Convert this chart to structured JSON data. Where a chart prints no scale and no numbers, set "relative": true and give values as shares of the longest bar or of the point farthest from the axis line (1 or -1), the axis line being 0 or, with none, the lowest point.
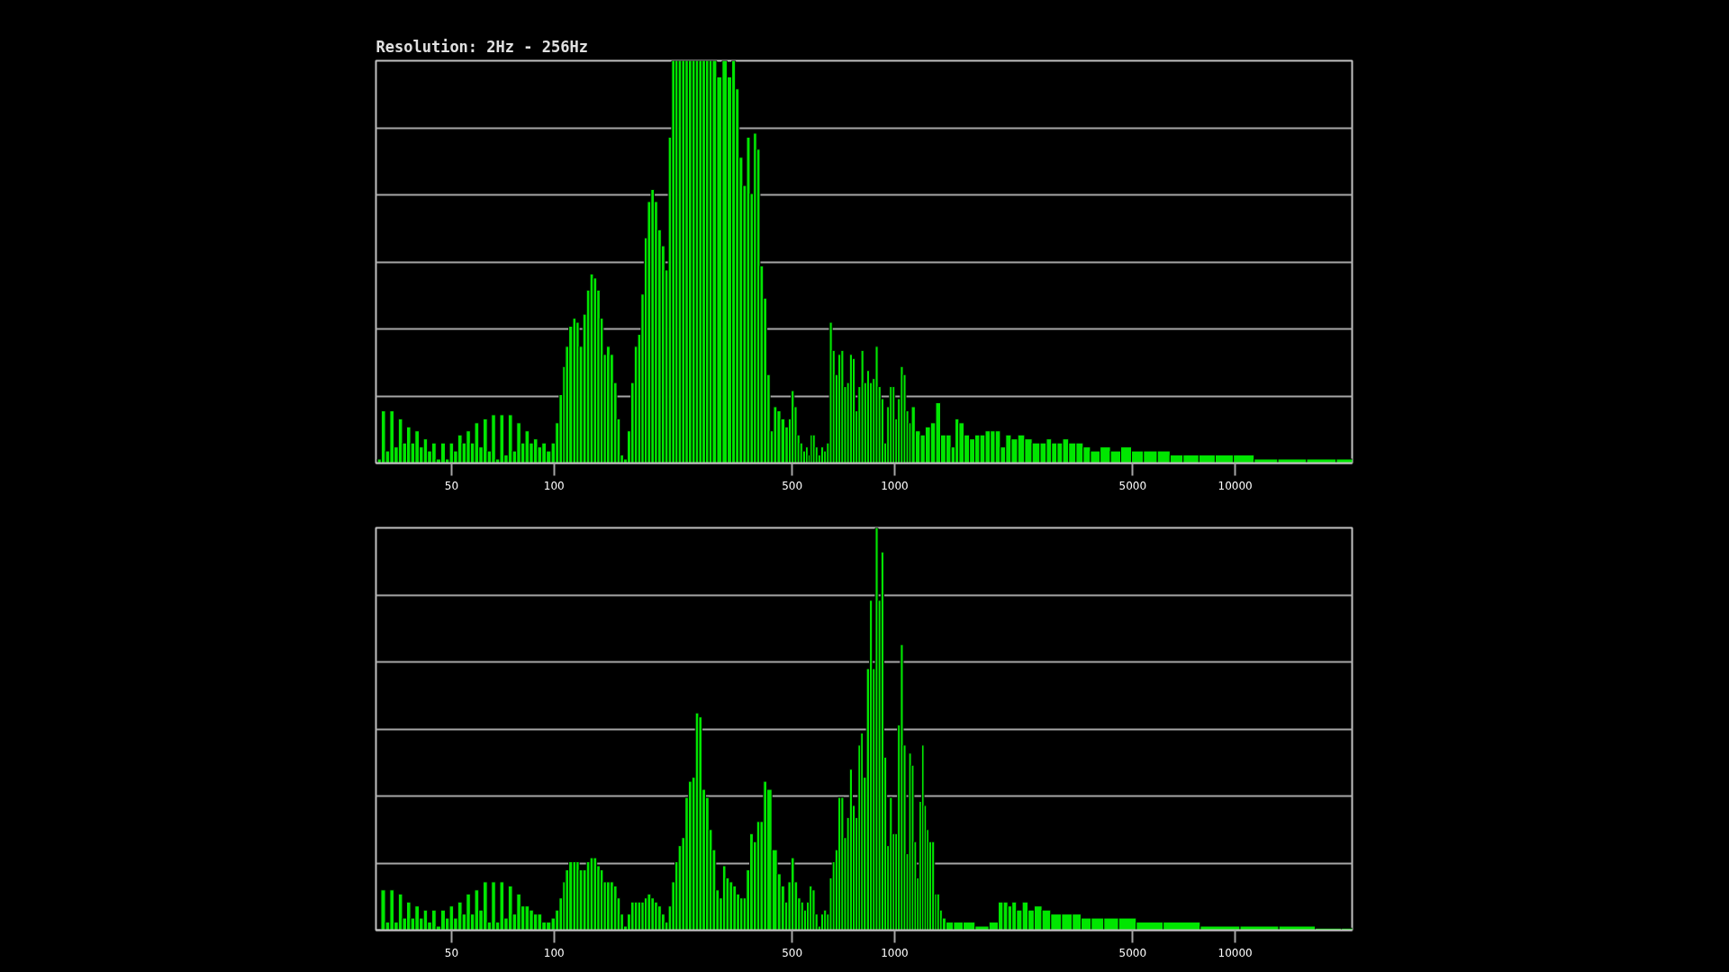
{
  "chart_data": [
    {
      "type": "bar",
      "title": "Resolution: 2Hz - 256Hz",
      "relative": true,
      "log": "x",
      "xlim": [
        30,
        22050
      ],
      "xticks": [
        50,
        100,
        500,
        1000,
        5000,
        10000
      ],
      "grid": "y",
      "color": "#00e600",
      "x": [
        30.7,
        31.5,
        32.5,
        33.4,
        34.4,
        35.4,
        36.4,
        37.4,
        38.5,
        39.6,
        40.8,
        41.9,
        43.1,
        44.4,
        45.7,
        47.3,
        48.6,
        50.0,
        51.4,
        52.9,
        54.5,
        56.0,
        57.6,
        59.3,
        61.0,
        62.8,
        64.6,
        66.4,
        68.3,
        70.3,
        72.3,
        74.4,
        76.6,
        78.8,
        81.0,
        83.4,
        85.8,
        88.2,
        90.8,
        93.4,
        96.4,
        99.8,
        102,
        105,
        107,
        109,
        112,
        115,
        117,
        120,
        123,
        126,
        129,
        132,
        135,
        138,
        141,
        144,
        148,
        151,
        155,
        158,
        162,
        166,
        170,
        174,
        178,
        182,
        186,
        190,
        195,
        199,
        204,
        209,
        214,
        219,
        224,
        229,
        234,
        240,
        245,
        251,
        257,
        263,
        269,
        275,
        282,
        288,
        295,
        306,
        317,
        328,
        337,
        345,
        354,
        363,
        372,
        381,
        389,
        398,
        407,
        417,
        426,
        436,
        446,
        457,
        470,
        483,
        492,
        502,
        512,
        522,
        532,
        542,
        553,
        561,
        569,
        579,
        590,
        601,
        613,
        625,
        637,
        650,
        662,
        675,
        689,
        702,
        716,
        730,
        744,
        759,
        773,
        789,
        804,
        820,
        836,
        852,
        869,
        886,
        903,
        921,
        939,
        957,
        975,
        994,
        1010,
        1030,
        1050,
        1070,
        1090,
        1110,
        1130,
        1170,
        1210,
        1250,
        1300,
        1340,
        1390,
        1440,
        1490,
        1520,
        1570,
        1630,
        1690,
        1750,
        1810,
        1880,
        1940,
        2010,
        2080,
        2160,
        2240,
        2360,
        2460,
        2610,
        2740,
        2840,
        2940,
        3060,
        3170,
        3320,
        3500,
        3660,
        3860,
        4170,
        4440,
        4790,
        5140,
        5630,
        6200,
        6690,
        7390,
        8290,
        9210,
        10600,
        12200,
        14600,
        18000,
        21800
      ],
      "values": [
        0.01,
        0.13,
        0.03,
        0.13,
        0.04,
        0.11,
        0.05,
        0.09,
        0.05,
        0.08,
        0.04,
        0.06,
        0.03,
        0.05,
        0.01,
        0.05,
        0.01,
        0.05,
        0.03,
        0.07,
        0.05,
        0.08,
        0.05,
        0.1,
        0.04,
        0.11,
        0.03,
        0.12,
        0.01,
        0.12,
        0.02,
        0.12,
        0.03,
        0.1,
        0.05,
        0.08,
        0.05,
        0.06,
        0.04,
        0.05,
        0.03,
        0.05,
        0.1,
        0.17,
        0.24,
        0.29,
        0.34,
        0.36,
        0.35,
        0.29,
        0.37,
        0.43,
        0.47,
        0.46,
        0.43,
        0.36,
        0.27,
        0.29,
        0.27,
        0.2,
        0.11,
        0.02,
        0.01,
        0.08,
        0.2,
        0.29,
        0.32,
        0.42,
        0.56,
        0.65,
        0.68,
        0.65,
        0.58,
        0.54,
        0.48,
        0.81,
        1,
        1,
        1,
        1,
        1,
        1,
        1,
        1,
        1,
        1,
        1,
        1,
        1,
        0.96,
        1,
        0.96,
        1,
        0.93,
        0.76,
        0.69,
        0.81,
        0.67,
        0.82,
        0.78,
        0.49,
        0.41,
        0.22,
        0.08,
        0.14,
        0.13,
        0.11,
        0.09,
        0.11,
        0.18,
        0.14,
        0.07,
        0.05,
        0.03,
        0.04,
        0.02,
        0.07,
        0.07,
        0.04,
        0.02,
        0.04,
        0.03,
        0.05,
        0.35,
        0.28,
        0.22,
        0.27,
        0.28,
        0.19,
        0.2,
        0.27,
        0.26,
        0.13,
        0.19,
        0.28,
        0.2,
        0.23,
        0.2,
        0.21,
        0.29,
        0.19,
        0.16,
        0.05,
        0.14,
        0.19,
        0.19,
        0.11,
        0.16,
        0.24,
        0.22,
        0.13,
        0.1,
        0.14,
        0.08,
        0.07,
        0.09,
        0.1,
        0.15,
        0.07,
        0.07,
        0.04,
        0.11,
        0.1,
        0.07,
        0.06,
        0.07,
        0.07,
        0.08,
        0.08,
        0.08,
        0.04,
        0.07,
        0.06,
        0.07,
        0.06,
        0.05,
        0.05,
        0.06,
        0.05,
        0.05,
        0.06,
        0.05,
        0.05,
        0.04,
        0.03,
        0.04,
        0.03,
        0.04,
        0.03,
        0.03,
        0.03,
        0.02,
        0.02,
        0.02,
        0.02,
        0.02,
        0.01,
        0.01,
        0.01,
        0.01
      ]
    },
    {
      "type": "bar",
      "relative": true,
      "log": "x",
      "xlim": [
        30,
        22050
      ],
      "xticks": [
        50,
        100,
        500,
        1000,
        5000,
        10000
      ],
      "grid": "y",
      "color": "#00e600",
      "x": [
        31.5,
        32.5,
        33.4,
        34.4,
        35.4,
        36.4,
        37.4,
        38.5,
        39.6,
        40.8,
        41.9,
        43.1,
        44.4,
        45.7,
        47.3,
        48.6,
        50.0,
        51.4,
        52.9,
        54.5,
        56.0,
        57.6,
        59.3,
        61.0,
        62.8,
        64.6,
        66.4,
        68.3,
        70.3,
        72.3,
        74.4,
        76.6,
        78.8,
        81.0,
        83.4,
        85.8,
        88.2,
        90.8,
        93.4,
        96.4,
        99.8,
        102,
        105,
        107,
        109,
        112,
        115,
        117,
        120,
        123,
        126,
        129,
        132,
        135,
        138,
        141,
        144,
        148,
        151,
        155,
        158,
        162,
        166,
        170,
        174,
        178,
        182,
        186,
        190,
        195,
        199,
        204,
        209,
        214,
        219,
        224,
        229,
        234,
        240,
        245,
        251,
        257,
        263,
        269,
        275,
        282,
        288,
        295,
        302,
        309,
        316,
        323,
        331,
        339,
        347,
        355,
        363,
        371,
        380,
        389,
        398,
        407,
        417,
        426,
        447,
        458,
        470,
        481,
        491,
        502,
        513,
        525,
        535,
        546,
        556,
        567,
        578,
        590,
        601,
        613,
        625,
        637,
        650,
        662,
        675,
        689,
        702,
        716,
        730,
        744,
        759,
        773,
        789,
        801,
        817,
        836,
        852,
        869,
        886,
        903,
        921,
        939,
        957,
        975,
        994,
        1010,
        1030,
        1050,
        1070,
        1090,
        1110,
        1130,
        1150,
        1170,
        1190,
        1210,
        1230,
        1250,
        1270,
        1300,
        1320,
        1340,
        1370,
        1390,
        1440,
        1540,
        1640,
        1810,
        1980,
        2050,
        2120,
        2180,
        2240,
        2320,
        2420,
        2510,
        2630,
        2790,
        2960,
        3230,
        3420,
        3640,
        3920,
        4320,
        4790,
        5480,
        6890,
        9050,
        11800,
        15300,
        19300,
        21800
      ],
      "values": [
        0.1,
        0.02,
        0.1,
        0.02,
        0.09,
        0.03,
        0.07,
        0.03,
        0.06,
        0.03,
        0.05,
        0.02,
        0.05,
        0.01,
        0.05,
        0.03,
        0.06,
        0.03,
        0.07,
        0.04,
        0.09,
        0.04,
        0.1,
        0.05,
        0.12,
        0.02,
        0.12,
        0.02,
        0.12,
        0.03,
        0.11,
        0.04,
        0.09,
        0.06,
        0.06,
        0.05,
        0.04,
        0.04,
        0.02,
        0.02,
        0.03,
        0.05,
        0.08,
        0.12,
        0.15,
        0.17,
        0.17,
        0.17,
        0.15,
        0.15,
        0.17,
        0.18,
        0.18,
        0.16,
        0.15,
        0.12,
        0.12,
        0.12,
        0.11,
        0.08,
        0.04,
        0.01,
        0.04,
        0.07,
        0.07,
        0.07,
        0.07,
        0.08,
        0.09,
        0.08,
        0.07,
        0.06,
        0.04,
        0.02,
        0.06,
        0.12,
        0.17,
        0.21,
        0.23,
        0.33,
        0.37,
        0.38,
        0.54,
        0.53,
        0.35,
        0.33,
        0.25,
        0.2,
        0.1,
        0.08,
        0.16,
        0.13,
        0.12,
        0.11,
        0.09,
        0.08,
        0.08,
        0.15,
        0.24,
        0.22,
        0.27,
        0.27,
        0.37,
        0.35,
        0.2,
        0.14,
        0.11,
        0.07,
        0.12,
        0.18,
        0.12,
        0.08,
        0.07,
        0.05,
        0.07,
        0.11,
        0.1,
        0.04,
        0.01,
        0.04,
        0.05,
        0.04,
        0.13,
        0.17,
        0.2,
        0.33,
        0.33,
        0.23,
        0.28,
        0.4,
        0.31,
        0.28,
        0.46,
        0.49,
        0.38,
        0.65,
        0.82,
        0.65,
        1,
        0.82,
        0.94,
        0.43,
        0.21,
        0.33,
        0.24,
        0.24,
        0.51,
        0.71,
        0.46,
        0.19,
        0.44,
        0.41,
        0.22,
        0.13,
        0.32,
        0.46,
        0.31,
        0.25,
        0.22,
        0.22,
        0.09,
        0.09,
        0.05,
        0.03,
        0.02,
        0.02,
        0.02,
        0.01,
        0.02,
        0.07,
        0.07,
        0.06,
        0.07,
        0.05,
        0.07,
        0.05,
        0.06,
        0.05,
        0.04,
        0.04,
        0.04,
        0.03,
        0.03,
        0.03,
        0.03,
        0.02,
        0.02,
        0.01,
        0.01,
        0.01,
        0.005,
        0.005
      ]
    }
  ]
}
